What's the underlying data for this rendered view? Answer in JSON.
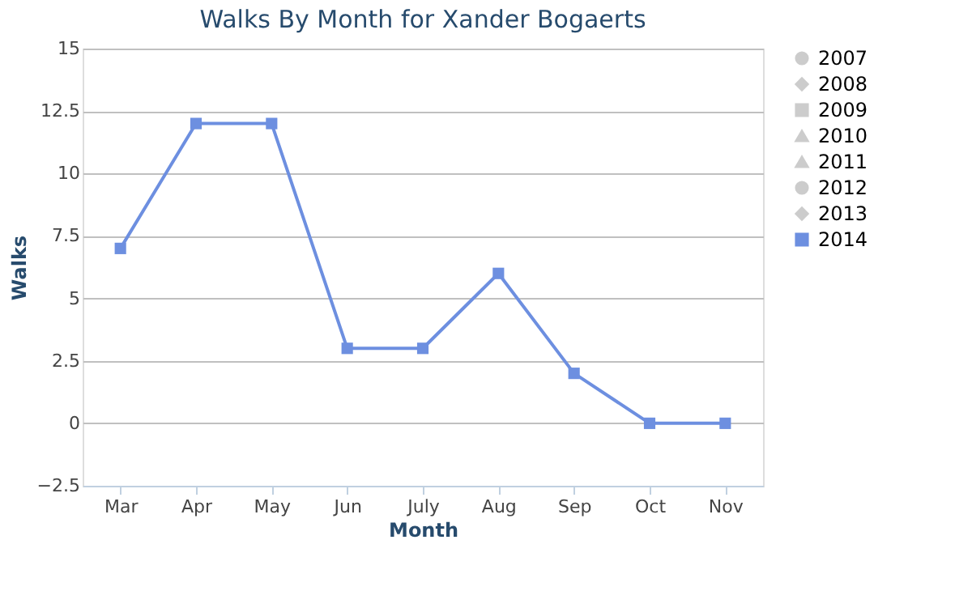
{
  "chart_data": {
    "type": "line",
    "title": "Walks By Month for Xander Bogaerts",
    "xlabel": "Month",
    "ylabel": "Walks",
    "categories": [
      "Mar",
      "Apr",
      "May",
      "Jun",
      "July",
      "Aug",
      "Sep",
      "Oct",
      "Nov"
    ],
    "series": [
      {
        "name": "2007",
        "color": "#cccccc",
        "marker": "circle",
        "values": [
          null,
          null,
          null,
          null,
          null,
          null,
          null,
          null,
          null
        ]
      },
      {
        "name": "2008",
        "color": "#cccccc",
        "marker": "diamond",
        "values": [
          null,
          null,
          null,
          null,
          null,
          null,
          null,
          null,
          null
        ]
      },
      {
        "name": "2009",
        "color": "#cccccc",
        "marker": "square",
        "values": [
          null,
          null,
          null,
          null,
          null,
          null,
          null,
          null,
          null
        ]
      },
      {
        "name": "2010",
        "color": "#cccccc",
        "marker": "triangle",
        "values": [
          null,
          null,
          null,
          null,
          null,
          null,
          null,
          null,
          null
        ]
      },
      {
        "name": "2011",
        "color": "#cccccc",
        "marker": "triangle",
        "values": [
          null,
          null,
          null,
          null,
          null,
          null,
          null,
          null,
          null
        ]
      },
      {
        "name": "2012",
        "color": "#cccccc",
        "marker": "circle",
        "values": [
          null,
          null,
          null,
          null,
          null,
          null,
          null,
          null,
          null
        ]
      },
      {
        "name": "2013",
        "color": "#cccccc",
        "marker": "diamond",
        "values": [
          null,
          null,
          null,
          null,
          null,
          null,
          null,
          null,
          null
        ]
      },
      {
        "name": "2014",
        "color": "#6d8fe0",
        "marker": "square",
        "values": [
          7,
          12,
          12,
          3,
          3,
          6,
          2,
          0,
          0
        ]
      }
    ],
    "ylim": [
      -2.5,
      15
    ],
    "yticks": [
      -2.5,
      0,
      2.5,
      5,
      7.5,
      10,
      12.5,
      15
    ],
    "grid": "y",
    "legend": "right",
    "line_style": "solid"
  }
}
